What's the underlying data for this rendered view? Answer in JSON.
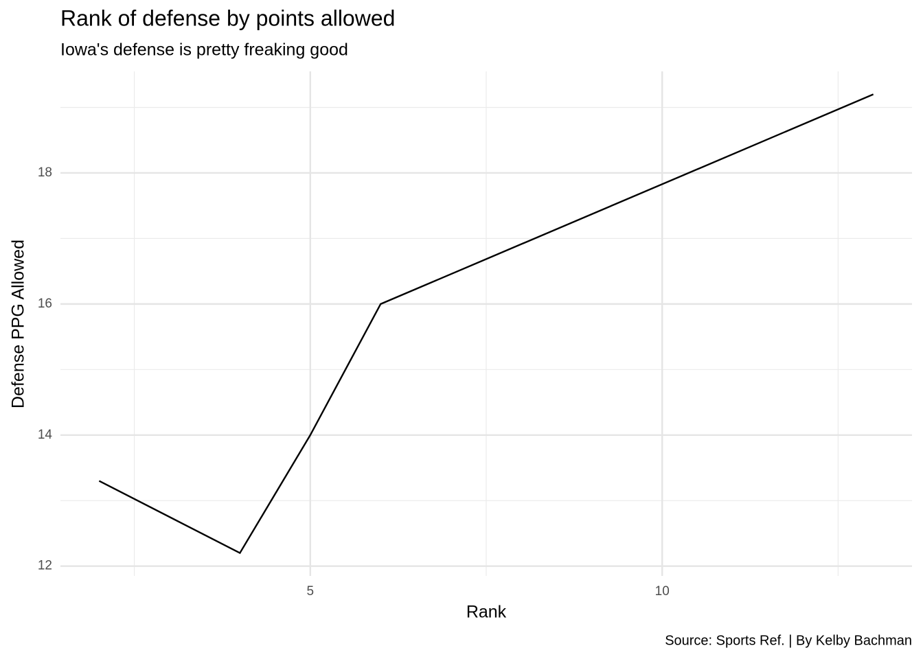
{
  "chart_data": {
    "type": "line",
    "title": "Rank of defense by points allowed",
    "subtitle": "Iowa's defense is pretty freaking good",
    "x_label": "Rank",
    "y_label": "Defense PPG Allowed",
    "caption": "Source: Sports Ref. | By Kelby Bachman",
    "x": [
      2,
      4,
      5,
      6,
      13
    ],
    "series": [
      {
        "color": "#000000",
        "values": [
          13.3,
          12.2,
          14,
          16,
          19.2
        ]
      }
    ],
    "xlim": [
      1.45,
      13.55
    ],
    "ylim": [
      11.85,
      19.55
    ],
    "xticks": [
      5,
      10
    ],
    "yticks": [
      12,
      14,
      16,
      18
    ],
    "x_minor_ticks": [
      2.5,
      7.5,
      12.5
    ],
    "y_minor_ticks": [
      13,
      15,
      17,
      19
    ],
    "grid": true
  }
}
